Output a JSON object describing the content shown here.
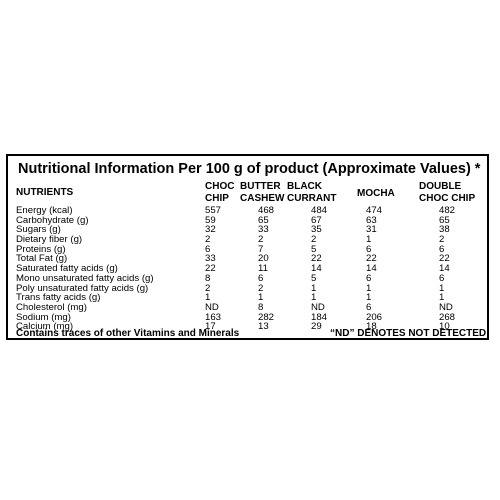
{
  "title": "Nutritional Information Per 100 g of product (Approximate Values) *",
  "columns_header": "NUTRIENTS",
  "products": [
    [
      "CHOC",
      "CHIP"
    ],
    [
      "BUTTER",
      "CASHEW"
    ],
    [
      "BLACK",
      "CURRANT"
    ],
    [
      "MOCHA"
    ],
    [
      "DOUBLE",
      "CHOC CHIP"
    ]
  ],
  "rows": [
    {
      "name": "Energy  (kcal)",
      "values": [
        "557",
        "468",
        "484",
        "474",
        "482"
      ]
    },
    {
      "name": "Carbohydrate (g)",
      "values": [
        "59",
        "65",
        "67",
        "63",
        "65"
      ]
    },
    {
      "name": "Sugars (g)",
      "values": [
        "32",
        "33",
        "35",
        "31",
        "38"
      ]
    },
    {
      "name": "Dietary fiber (g)",
      "values": [
        "2",
        "2",
        "2",
        "1",
        "2"
      ]
    },
    {
      "name": "Proteins  (g)",
      "values": [
        "6",
        "7",
        "5",
        "6",
        "6"
      ]
    },
    {
      "name": "Total Fat (g)",
      "values": [
        "33",
        "20",
        "22",
        "22",
        "22"
      ]
    },
    {
      "name": "Saturated fatty acids (g)",
      "values": [
        "22",
        "11",
        "14",
        "14",
        "14"
      ]
    },
    {
      "name": "Mono unsaturated fatty acids (g)",
      "values": [
        "8",
        "6",
        "5",
        "6",
        "6"
      ]
    },
    {
      "name": "Poly  unsaturated fatty acids  (g)",
      "values": [
        "2",
        "2",
        "1",
        "1",
        "1"
      ]
    },
    {
      "name": "Trans fatty acids  (g)",
      "values": [
        "1",
        "1",
        "1",
        "1",
        "1"
      ]
    },
    {
      "name": "Cholesterol  (mg)",
      "values": [
        "ND",
        "8",
        "ND",
        "6",
        "ND"
      ]
    },
    {
      "name": "Sodium (mg)",
      "values": [
        "163",
        "282",
        "184",
        "206",
        "268"
      ]
    },
    {
      "name": "Calcium (mg)",
      "values": [
        "17",
        "13",
        "29",
        "18",
        "10"
      ]
    }
  ],
  "footer_left": "Contains traces of other Vitamins and Minerals",
  "footer_right": "“ND” DENOTES NOT DETECTED"
}
